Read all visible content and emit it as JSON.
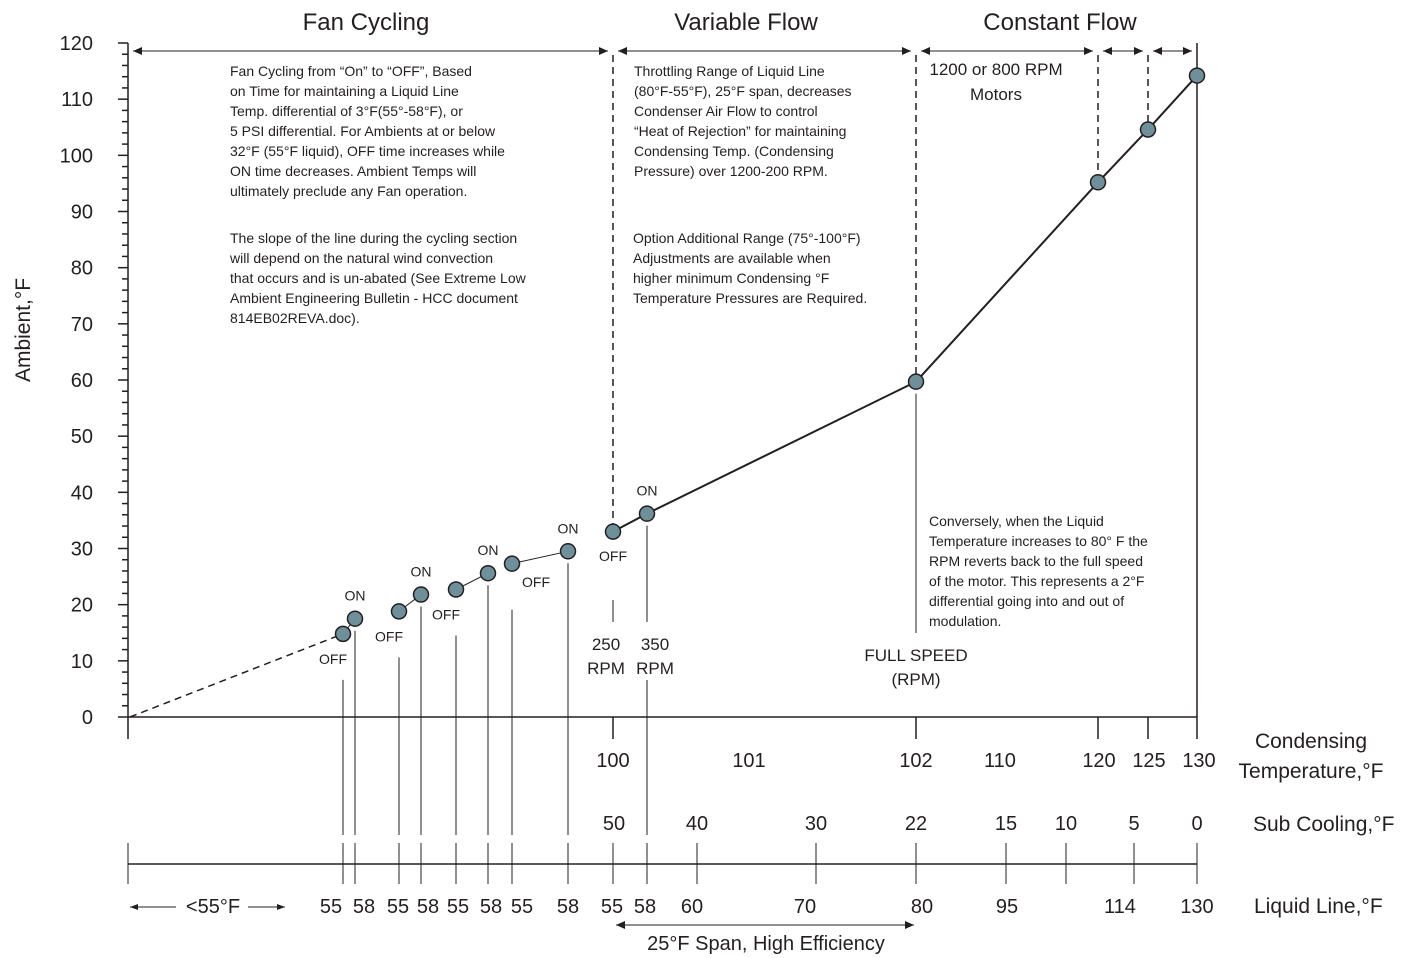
{
  "chart_data": {
    "type": "line",
    "ylabel": "Ambient,°F",
    "ylim": [
      0,
      120
    ],
    "yticks": [
      "0",
      "10",
      "20",
      "30",
      "40",
      "50",
      "60",
      "70",
      "80",
      "90",
      "100",
      "110",
      "120"
    ],
    "sections": [
      {
        "title": "Fan Cycling"
      },
      {
        "title": "Variable Flow"
      },
      {
        "title": "Constant Flow"
      }
    ],
    "series": [
      {
        "points": [
          {
            "lx": 55,
            "y": 14.8,
            "state": "OFF"
          },
          {
            "lx": 58,
            "y": 17.5,
            "state": "ON"
          },
          {
            "lx": 55,
            "y": 18.8,
            "state": "OFF"
          },
          {
            "lx": 58,
            "y": 21.8,
            "state": "ON"
          },
          {
            "lx": 55,
            "y": 22.7,
            "state": "OFF"
          },
          {
            "lx": 58,
            "y": 25.6,
            "state": "ON"
          },
          {
            "lx": 55,
            "y": 27.3,
            "state": "OFF"
          },
          {
            "lx": 58,
            "y": 29.5,
            "state": "ON"
          },
          {
            "lx": 55,
            "y": 33.0,
            "state": "OFF"
          },
          {
            "lx": 58,
            "y": 36.2,
            "state": "ON"
          },
          {
            "lx": 80,
            "y": 59.7,
            "state": ""
          },
          {
            "lx": 120,
            "y": 95.2,
            "state": ""
          },
          {
            "lx": 125,
            "y": 104.6,
            "state": ""
          },
          {
            "lx": 130,
            "y": 114.2,
            "state": ""
          }
        ]
      }
    ],
    "axes": {
      "condensing": {
        "label": [
          "Condensing",
          "Temperature,°F"
        ],
        "ticks": [
          "100",
          "101",
          "102",
          "110",
          "120",
          "125",
          "130"
        ]
      },
      "subcooling": {
        "label": "Sub Cooling,°F",
        "ticks": [
          "50",
          "40",
          "30",
          "22",
          "15",
          "10",
          "5",
          "0"
        ]
      },
      "liquid_line": {
        "label": "Liquid Line,°F",
        "ticks": [
          "55",
          "58",
          "55",
          "58",
          "55",
          "58",
          "55",
          "58",
          "55",
          "58",
          "60",
          "70",
          "80",
          "95",
          "114",
          "130"
        ],
        "below_range": "<55°F",
        "span_label": "25°F Span, High Efficiency"
      }
    },
    "annotations": {
      "state_labels": [
        "OFF",
        "ON"
      ],
      "rpm_250": [
        "250",
        "RPM"
      ],
      "rpm_350": [
        "350",
        "RPM"
      ],
      "full_speed": [
        "FULL SPEED",
        "(RPM)"
      ],
      "motors": [
        "1200 or 800 RPM",
        "Motors"
      ],
      "fan_cycling_note": [
        "Fan Cycling from “On” to “OFF”, Based",
        "on Time for maintaining a Liquid Line",
        "Temp. differential of 3°F(55°-58°F), or",
        "5 PSI differential. For Ambients at or below",
        "32°F (55°F liquid), OFF time increases while",
        "ON time decreases. Ambient Temps will",
        "ultimately preclude any Fan operation."
      ],
      "slope_note": [
        "The slope of the line during the cycling section",
        "will depend on the natural wind convection",
        "that occurs and is un-abated (See Extreme Low",
        "Ambient Engineering Bulletin - HCC document",
        "814EB02REVA.doc)."
      ],
      "throttling_note": [
        "Throttling Range of Liquid Line",
        "(80°F-55°F), 25°F span, decreases",
        "Condenser Air Flow to control",
        "“Heat of Rejection” for maintaining",
        "Condensing Temp. (Condensing",
        "Pressure) over 1200-200 RPM."
      ],
      "option_note": [
        "Option Additional Range (75°-100°F)",
        "Adjustments are available when",
        "higher minimum Condensing °F",
        "Temperature Pressures are Required."
      ],
      "conversely_note": [
        "Conversely, when the Liquid",
        "Temperature increases to 80° F the",
        "RPM reverts back to the full speed",
        "of the motor. This represents a 2°F",
        "differential going into and out of",
        "modulation."
      ]
    },
    "colors": {
      "marker_fill": "#6f8f9b",
      "ink": "#231f20",
      "background": "#ffffff"
    }
  }
}
